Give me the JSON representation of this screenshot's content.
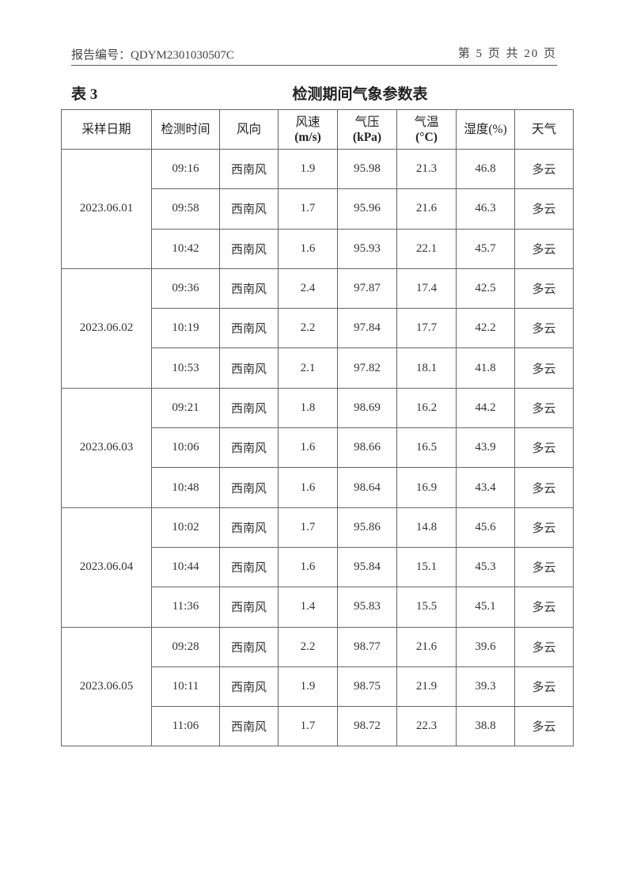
{
  "header": {
    "report_no": "报告编号：QDYM2301030507C",
    "page_info": "第 5 页 共 20 页"
  },
  "table_label": "表 3",
  "table_title": "检测期间气象参数表",
  "columns": [
    {
      "label": "采样日期",
      "unit": ""
    },
    {
      "label": "检测时间",
      "unit": ""
    },
    {
      "label": "风向",
      "unit": ""
    },
    {
      "label": "风速",
      "unit": "(m/s)"
    },
    {
      "label": "气压",
      "unit": "(kPa)"
    },
    {
      "label": "气温",
      "unit": "(°C)"
    },
    {
      "label": "湿度(%)",
      "unit": ""
    },
    {
      "label": "天气",
      "unit": ""
    }
  ],
  "groups": [
    {
      "date": "2023.06.01",
      "rows": [
        [
          "09:16",
          "西南风",
          "1.9",
          "95.98",
          "21.3",
          "46.8",
          "多云"
        ],
        [
          "09:58",
          "西南风",
          "1.7",
          "95.96",
          "21.6",
          "46.3",
          "多云"
        ],
        [
          "10:42",
          "西南风",
          "1.6",
          "95.93",
          "22.1",
          "45.7",
          "多云"
        ]
      ]
    },
    {
      "date": "2023.06.02",
      "rows": [
        [
          "09:36",
          "西南风",
          "2.4",
          "97.87",
          "17.4",
          "42.5",
          "多云"
        ],
        [
          "10:19",
          "西南风",
          "2.2",
          "97.84",
          "17.7",
          "42.2",
          "多云"
        ],
        [
          "10:53",
          "西南风",
          "2.1",
          "97.82",
          "18.1",
          "41.8",
          "多云"
        ]
      ]
    },
    {
      "date": "2023.06.03",
      "rows": [
        [
          "09:21",
          "西南风",
          "1.8",
          "98.69",
          "16.2",
          "44.2",
          "多云"
        ],
        [
          "10:06",
          "西南风",
          "1.6",
          "98.66",
          "16.5",
          "43.9",
          "多云"
        ],
        [
          "10:48",
          "西南风",
          "1.6",
          "98.64",
          "16.9",
          "43.4",
          "多云"
        ]
      ]
    },
    {
      "date": "2023.06.04",
      "rows": [
        [
          "10:02",
          "西南风",
          "1.7",
          "95.86",
          "14.8",
          "45.6",
          "多云"
        ],
        [
          "10:44",
          "西南风",
          "1.6",
          "95.84",
          "15.1",
          "45.3",
          "多云"
        ],
        [
          "11:36",
          "西南风",
          "1.4",
          "95.83",
          "15.5",
          "45.1",
          "多云"
        ]
      ]
    },
    {
      "date": "2023.06.05",
      "rows": [
        [
          "09:28",
          "西南风",
          "2.2",
          "98.77",
          "21.6",
          "39.6",
          "多云"
        ],
        [
          "10:11",
          "西南风",
          "1.9",
          "98.75",
          "21.9",
          "39.3",
          "多云"
        ],
        [
          "11:06",
          "西南风",
          "1.7",
          "98.72",
          "22.3",
          "38.8",
          "多云"
        ]
      ]
    }
  ]
}
